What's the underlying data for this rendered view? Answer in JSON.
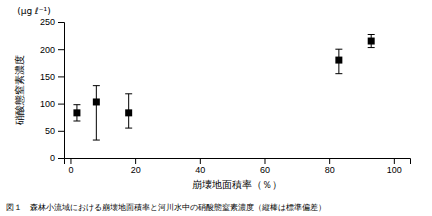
{
  "chart_data": {
    "type": "scatter",
    "x": [
      2,
      8,
      18,
      83,
      93
    ],
    "values": [
      83,
      103,
      83,
      180,
      215
    ],
    "error_upper": [
      15,
      30,
      35,
      20,
      12
    ],
    "error_lower": [
      15,
      70,
      28,
      25,
      12
    ],
    "marker": "square",
    "color": "black",
    "xlabel": "崩壊地面積率（％）",
    "ylabel": "硝酸態窒素濃度",
    "ylabel_unit": "(μg ℓ⁻¹)",
    "caption": "図１　森林小流域における崩壊地面積率と河川水中の硝酸態窒素濃度（縦棒は標準偏差）",
    "xlim": [
      -2,
      105
    ],
    "ylim": [
      0,
      250
    ],
    "xticks": [
      0,
      20,
      40,
      60,
      80,
      100
    ],
    "yticks": [
      0,
      50,
      100,
      150,
      200,
      250
    ],
    "grid": false
  }
}
